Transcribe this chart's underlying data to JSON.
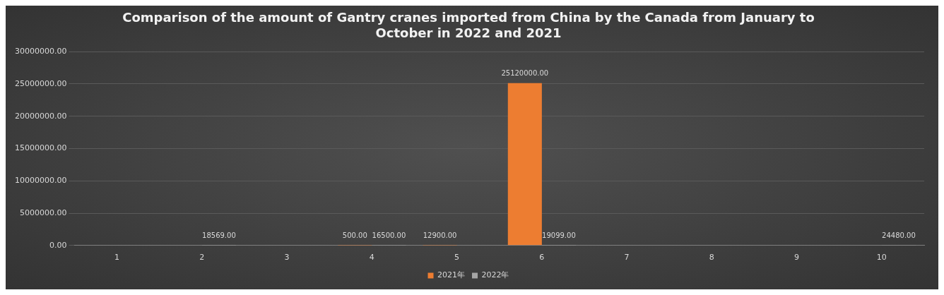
{
  "chart_data": {
    "type": "bar",
    "title": "Comparison of the amount of Gantry cranes imported from China by the Canada from January to October in 2022 and 2021",
    "categories": [
      "1",
      "2",
      "3",
      "4",
      "5",
      "6",
      "7",
      "8",
      "9",
      "10"
    ],
    "series": [
      {
        "name": "2021年",
        "color": "#ed7d31",
        "values": [
          null,
          null,
          null,
          500,
          12900,
          25120000,
          null,
          null,
          null,
          null
        ],
        "value_labels": [
          null,
          null,
          null,
          "500.00",
          "12900.00",
          "25120000.00",
          null,
          null,
          null,
          null
        ]
      },
      {
        "name": "2022年",
        "color": "#a5a5a5",
        "values": [
          null,
          18569,
          null,
          16500,
          null,
          19099,
          null,
          null,
          null,
          24480
        ],
        "value_labels": [
          null,
          "18569.00",
          null,
          "16500.00",
          null,
          "19099.00",
          null,
          null,
          null,
          "24480.00"
        ]
      }
    ],
    "ylim": [
      0,
      30000000
    ],
    "yticks": [
      {
        "value": 0,
        "label": "0.00"
      },
      {
        "value": 5000000,
        "label": "5000000.00"
      },
      {
        "value": 10000000,
        "label": "10000000.00"
      },
      {
        "value": 15000000,
        "label": "15000000.00"
      },
      {
        "value": 20000000,
        "label": "20000000.00"
      },
      {
        "value": 25000000,
        "label": "25000000.00"
      },
      {
        "value": 30000000,
        "label": "30000000.00"
      }
    ],
    "grid": "y",
    "legend": "bottom"
  }
}
